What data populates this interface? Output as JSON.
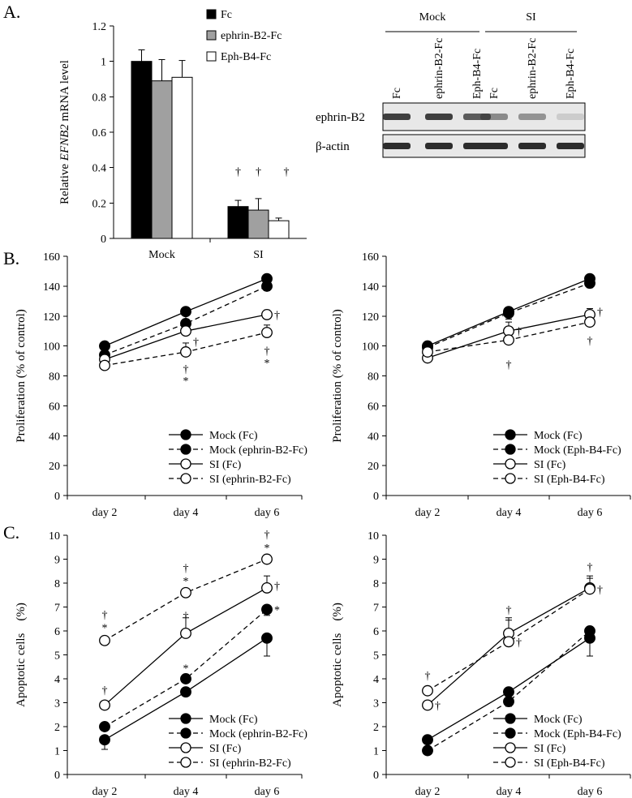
{
  "panel_labels": {
    "a": "A.",
    "b": "B.",
    "c": "C."
  },
  "colors": {
    "fc": "#000000",
    "ephrin": "#a0a0a0",
    "eph": "#ffffff",
    "band": "#2c2c2c",
    "blot_bg": "#e8e8e8"
  },
  "western_blot": {
    "groups": [
      "Mock",
      "SI"
    ],
    "lanes": [
      "Fc",
      "ephrin-B2-Fc",
      "Eph-B4-Fc",
      "Fc",
      "ephrin-B2-Fc",
      "Eph-B4-Fc"
    ],
    "rows": [
      {
        "label": "ephrin-B2",
        "intensities": [
          0.9,
          0.9,
          0.75,
          0.5,
          0.45,
          0.15
        ]
      },
      {
        "label": "β-actin",
        "intensities": [
          1.0,
          1.0,
          1.0,
          1.0,
          1.0,
          1.0
        ]
      }
    ]
  },
  "chart_data": [
    {
      "id": "A-bar",
      "type": "bar",
      "ylabel_pre": "Relative",
      "ylabel_italic": "EFNB2",
      "ylabel_post": "mRNA level",
      "categories": [
        "Mock",
        "SI"
      ],
      "ylim": [
        0,
        1.2
      ],
      "yticks": [
        "0",
        "0.2",
        "0.4",
        "0.6",
        "0.8",
        "1",
        "1.2"
      ],
      "series": [
        {
          "name": "Fc",
          "values": [
            1.0,
            0.18
          ],
          "errors": [
            0.065,
            0.035
          ]
        },
        {
          "name": "ephrin-B2-Fc",
          "values": [
            0.89,
            0.16
          ],
          "errors": [
            0.12,
            0.065
          ]
        },
        {
          "name": "Eph-B4-Fc",
          "values": [
            0.91,
            0.1
          ],
          "errors": [
            0.095,
            0.015
          ]
        }
      ],
      "annotations": [
        {
          "category": 1,
          "series": 0,
          "text": "†"
        },
        {
          "category": 1,
          "series": 1,
          "text": "†"
        },
        {
          "category": 1,
          "series": 2,
          "text": "†"
        }
      ]
    },
    {
      "id": "B-left",
      "type": "line",
      "ylabel": "Proliferation (% of control)",
      "categories": [
        "day 2",
        "day 4",
        "day 6"
      ],
      "ylim": [
        0,
        160
      ],
      "yticks": [
        "0",
        "20",
        "40",
        "60",
        "80",
        "100",
        "120",
        "140",
        "160"
      ],
      "series": [
        {
          "name": "Mock (Fc)",
          "values": [
            100,
            123,
            145
          ],
          "errors": [
            8,
            5,
            3
          ],
          "filled": true,
          "dashed": false
        },
        {
          "name": "Mock (ephrin-B2-Fc)",
          "values": [
            94,
            115,
            140
          ],
          "errors": [
            6,
            5,
            3
          ],
          "filled": true,
          "dashed": true
        },
        {
          "name": "SI (Fc)",
          "values": [
            91,
            110,
            121
          ],
          "errors": [
            5,
            7,
            3
          ],
          "filled": false,
          "dashed": false
        },
        {
          "name": "SI (ephrin-B2-Fc)",
          "values": [
            87,
            96,
            109
          ],
          "errors": [
            3,
            6,
            5
          ],
          "filled": false,
          "dashed": true
        }
      ],
      "annotations": [
        {
          "x": 1,
          "y": 103,
          "text": "†",
          "side": "right"
        },
        {
          "x": 1,
          "y": 85,
          "text": "†",
          "side": "below"
        },
        {
          "x": 1,
          "y": 77,
          "text": "*",
          "side": "below"
        },
        {
          "x": 2,
          "y": 121,
          "text": "†",
          "side": "right"
        },
        {
          "x": 2,
          "y": 97,
          "text": "†",
          "side": "below"
        },
        {
          "x": 2,
          "y": 89,
          "text": "*",
          "side": "below"
        }
      ]
    },
    {
      "id": "B-right",
      "type": "line",
      "ylabel": "Proliferation (% of control)",
      "categories": [
        "day 2",
        "day 4",
        "day 6"
      ],
      "ylim": [
        0,
        160
      ],
      "yticks": [
        "0",
        "20",
        "40",
        "60",
        "80",
        "100",
        "120",
        "140",
        "160"
      ],
      "series": [
        {
          "name": "Mock (Fc)",
          "values": [
            100,
            123,
            145
          ],
          "errors": [
            8,
            5,
            3
          ],
          "filled": true,
          "dashed": false
        },
        {
          "name": "Mock (Eph-B4-Fc)",
          "values": [
            99,
            122,
            142
          ],
          "errors": [
            6,
            4,
            3
          ],
          "filled": true,
          "dashed": true
        },
        {
          "name": "SI (Fc)",
          "values": [
            92,
            110,
            121
          ],
          "errors": [
            5,
            6,
            4
          ],
          "filled": false,
          "dashed": false
        },
        {
          "name": "SI (Eph-B4-Fc)",
          "values": [
            96,
            104,
            116
          ],
          "errors": [
            5,
            7,
            6
          ],
          "filled": false,
          "dashed": true
        }
      ],
      "annotations": [
        {
          "x": 1,
          "y": 110,
          "text": "†",
          "side": "right"
        },
        {
          "x": 1,
          "y": 88,
          "text": "†",
          "side": "below"
        },
        {
          "x": 2,
          "y": 123,
          "text": "†",
          "side": "right"
        },
        {
          "x": 2,
          "y": 104,
          "text": "†",
          "side": "below"
        }
      ]
    },
    {
      "id": "C-left",
      "type": "line",
      "ylabel": "Apoptotic cells　(%)",
      "categories": [
        "day 2",
        "day 4",
        "day 6"
      ],
      "ylim": [
        0,
        10
      ],
      "yticks": [
        "0",
        "1",
        "2",
        "3",
        "4",
        "5",
        "6",
        "7",
        "8",
        "9",
        "10"
      ],
      "series": [
        {
          "name": "Mock (Fc)",
          "values": [
            1.45,
            3.45,
            5.7
          ],
          "errors": [
            0.4,
            0.15,
            0.75
          ],
          "filled": true,
          "dashed": false
        },
        {
          "name": "Mock (ephrin-B2-Fc)",
          "values": [
            2.0,
            4.0,
            6.9
          ],
          "errors": [
            0.15,
            0.15,
            0.25
          ],
          "filled": true,
          "dashed": true
        },
        {
          "name": "SI (Fc)",
          "values": [
            2.9,
            5.9,
            7.8
          ],
          "errors": [
            0.15,
            0.65,
            0.5
          ],
          "filled": false,
          "dashed": false
        },
        {
          "name": "SI (ephrin-B2-Fc)",
          "values": [
            5.6,
            7.6,
            9.0
          ],
          "errors": [
            0.1,
            0.15,
            0.15
          ],
          "filled": false,
          "dashed": true
        }
      ],
      "annotations": [
        {
          "x": 0,
          "y": 3.55,
          "text": "†",
          "side": "above"
        },
        {
          "x": 0,
          "y": 6.7,
          "text": "†",
          "side": "above"
        },
        {
          "x": 0,
          "y": 6.15,
          "text": "*",
          "side": "above"
        },
        {
          "x": 1,
          "y": 4.45,
          "text": "*",
          "side": "above"
        },
        {
          "x": 1,
          "y": 6.65,
          "text": "†",
          "side": "above"
        },
        {
          "x": 1,
          "y": 8.65,
          "text": "†",
          "side": "above"
        },
        {
          "x": 1,
          "y": 8.1,
          "text": "*",
          "side": "above"
        },
        {
          "x": 2,
          "y": 6.9,
          "text": "*",
          "side": "right"
        },
        {
          "x": 2,
          "y": 7.9,
          "text": "†",
          "side": "right"
        },
        {
          "x": 2,
          "y": 10.05,
          "text": "†",
          "side": "above"
        },
        {
          "x": 2,
          "y": 9.5,
          "text": "*",
          "side": "above"
        }
      ]
    },
    {
      "id": "C-right",
      "type": "line",
      "ylabel": "Apoptotic cells　(%)",
      "categories": [
        "day 2",
        "day 4",
        "day 6"
      ],
      "ylim": [
        0,
        10
      ],
      "yticks": [
        "0",
        "1",
        "2",
        "3",
        "4",
        "5",
        "6",
        "7",
        "8",
        "9",
        "10"
      ],
      "series": [
        {
          "name": "Mock (Fc)",
          "values": [
            1.45,
            3.45,
            5.7
          ],
          "errors": [
            0.4,
            0.15,
            0.75
          ],
          "filled": true,
          "dashed": false
        },
        {
          "name": "Mock (Eph-B4-Fc)",
          "values": [
            1.0,
            3.05,
            6.0
          ],
          "errors": [
            0.05,
            0.2,
            0.45
          ],
          "filled": true,
          "dashed": true
        },
        {
          "name": "SI (Fc)",
          "values": [
            2.9,
            5.9,
            7.8
          ],
          "errors": [
            0.15,
            0.65,
            0.5
          ],
          "filled": false,
          "dashed": false
        },
        {
          "name": "SI (Eph-B4-Fc)",
          "values": [
            3.5,
            5.55,
            7.75
          ],
          "errors": [
            0.1,
            0.9,
            0.45
          ],
          "filled": false,
          "dashed": true
        }
      ],
      "annotations": [
        {
          "x": 0,
          "y": 4.15,
          "text": "†",
          "side": "above"
        },
        {
          "x": 0,
          "y": 2.9,
          "text": "†",
          "side": "right"
        },
        {
          "x": 1,
          "y": 6.9,
          "text": "†",
          "side": "above"
        },
        {
          "x": 1,
          "y": 5.55,
          "text": "†",
          "side": "right"
        },
        {
          "x": 2,
          "y": 8.7,
          "text": "†",
          "side": "above"
        },
        {
          "x": 2,
          "y": 7.75,
          "text": "†",
          "side": "right"
        }
      ]
    }
  ]
}
